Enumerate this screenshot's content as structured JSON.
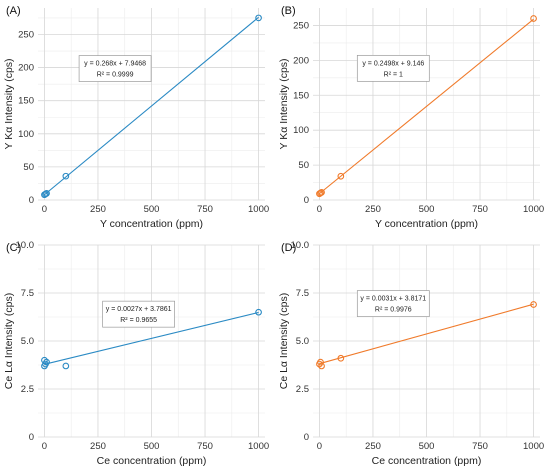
{
  "chart_data": [
    {
      "type": "scatter",
      "panel_label": "(A)",
      "xlabel": "Y concentration (ppm)",
      "ylabel": "Y Kα Intensity (cps)",
      "xlim": [
        -30,
        1030
      ],
      "ylim": [
        0,
        290
      ],
      "xticks": [
        "0",
        "250",
        "500",
        "750",
        "1000"
      ],
      "yticks": [
        "0",
        "50",
        "100",
        "150",
        "200",
        "250"
      ],
      "color": "#2a8ac4",
      "series": [
        {
          "points": [
            [
              0,
              8
            ],
            [
              5,
              9
            ],
            [
              10,
              10
            ],
            [
              100,
              36
            ],
            [
              1000,
              275
            ]
          ],
          "fit": {
            "slope": 0.268,
            "intercept": 7.9468
          }
        }
      ],
      "annotation": [
        "y = 0.268x + 7.9468",
        "R² = 0.9999"
      ],
      "annotation_pos": {
        "x": 330,
        "y": 200
      }
    },
    {
      "type": "scatter",
      "panel_label": "(B)",
      "xlabel": "Y concentration (ppm)",
      "ylabel": "Y Kα Intensity (cps)",
      "xlim": [
        -30,
        1030
      ],
      "ylim": [
        0,
        275
      ],
      "xticks": [
        "0",
        "250",
        "500",
        "750",
        "1000"
      ],
      "yticks": [
        "0",
        "50",
        "100",
        "150",
        "200",
        "250"
      ],
      "color": "#f07a2a",
      "series": [
        {
          "points": [
            [
              0,
              9
            ],
            [
              5,
              10
            ],
            [
              10,
              11
            ],
            [
              100,
              34
            ],
            [
              1000,
              260
            ]
          ],
          "fit": {
            "slope": 0.2498,
            "intercept": 9.146
          }
        }
      ],
      "annotation": [
        "y = 0.2498x + 9.146",
        "R² = 1"
      ],
      "annotation_pos": {
        "x": 345,
        "y": 190
      }
    },
    {
      "type": "scatter",
      "panel_label": "(C)",
      "xlabel": "Ce concentration (ppm)",
      "ylabel": "Ce Lα Intensity (cps)",
      "xlim": [
        -30,
        1030
      ],
      "ylim": [
        0,
        10
      ],
      "xticks": [
        "0",
        "250",
        "500",
        "750",
        "1000"
      ],
      "yticks": [
        "0",
        "2.5",
        "5.0",
        "7.5",
        "10.0"
      ],
      "color": "#2a8ac4",
      "series": [
        {
          "points": [
            [
              0,
              3.7
            ],
            [
              0,
              4.0
            ],
            [
              5,
              3.8
            ],
            [
              10,
              3.9
            ],
            [
              100,
              3.7
            ],
            [
              1000,
              6.5
            ]
          ],
          "fit": {
            "slope": 0.0027,
            "intercept": 3.7861
          }
        }
      ],
      "annotation": [
        "y = 0.0027x + 3.7861",
        "R² = 0.9655"
      ],
      "annotation_pos": {
        "x": 440,
        "y": 6.45
      }
    },
    {
      "type": "scatter",
      "panel_label": "(D)",
      "xlabel": "Ce concentration (ppm)",
      "ylabel": "Ce Lα Intensity (cps)",
      "xlim": [
        -30,
        1030
      ],
      "ylim": [
        0,
        10
      ],
      "xticks": [
        "0",
        "250",
        "500",
        "750",
        "1000"
      ],
      "yticks": [
        "0",
        "2.5",
        "5.0",
        "7.5",
        "10.0"
      ],
      "color": "#f07a2a",
      "series": [
        {
          "points": [
            [
              0,
              3.8
            ],
            [
              5,
              3.9
            ],
            [
              10,
              3.7
            ],
            [
              100,
              4.1
            ],
            [
              1000,
              6.9
            ]
          ],
          "fit": {
            "slope": 0.0031,
            "intercept": 3.8171
          }
        }
      ],
      "annotation": [
        "y = 0.0031x + 3.8171",
        "R² = 0.9976"
      ],
      "annotation_pos": {
        "x": 345,
        "y": 7.0
      }
    }
  ]
}
